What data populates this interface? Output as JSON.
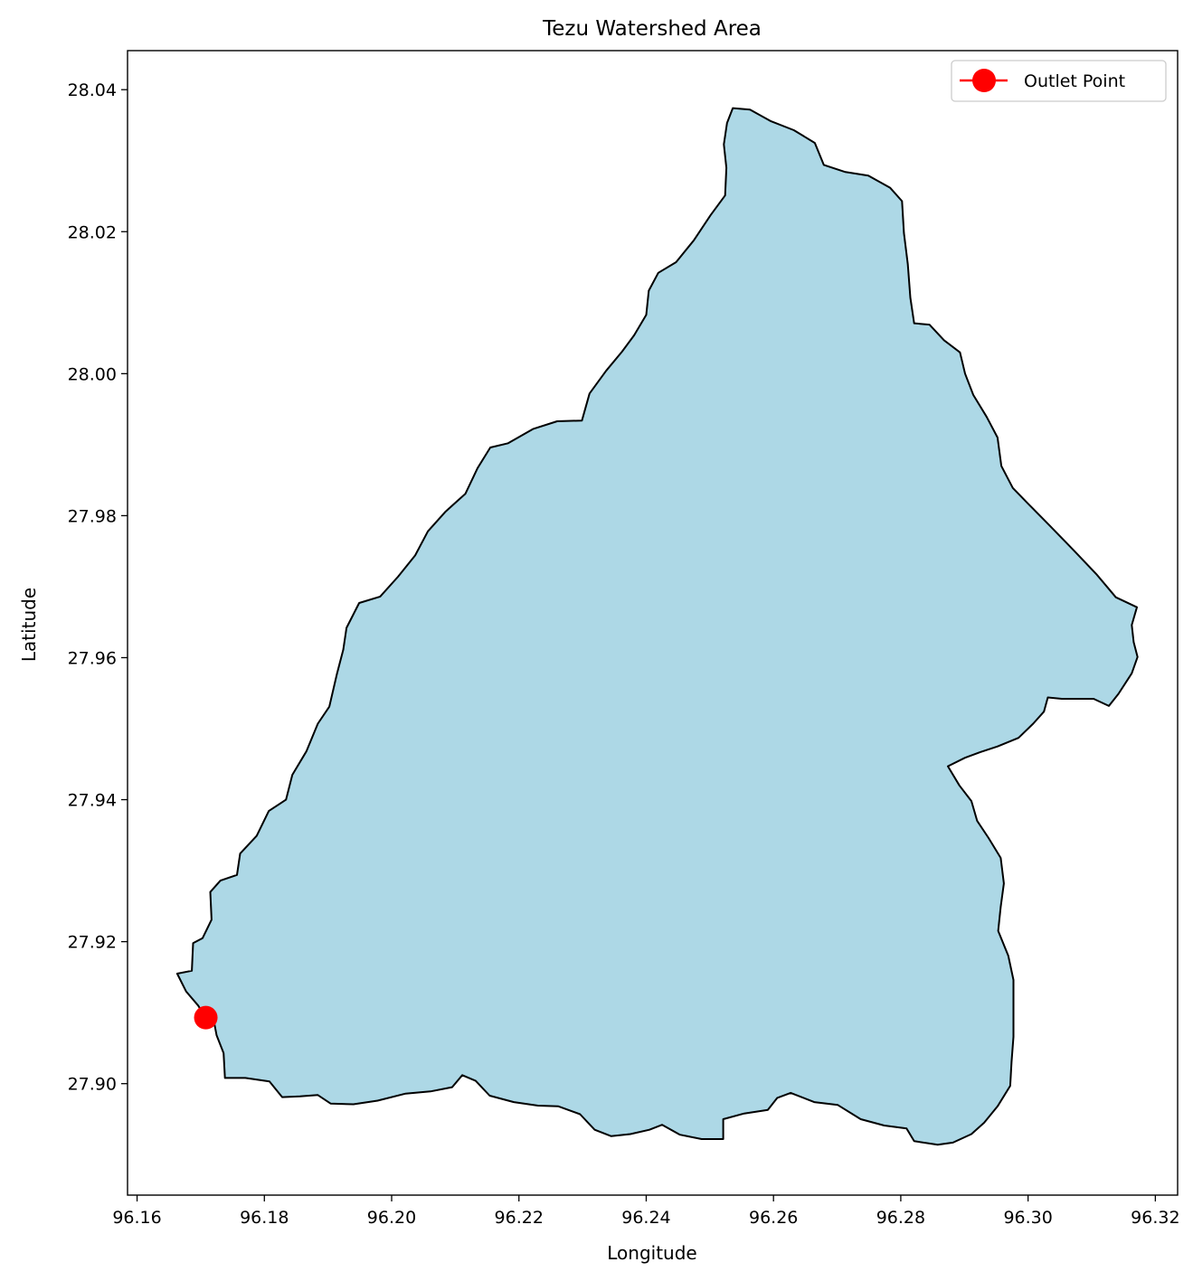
{
  "chart_data": {
    "type": "map",
    "title": "Tezu Watershed Area",
    "xlabel": "Longitude",
    "ylabel": "Latitude",
    "xlim": [
      96.1585,
      96.3235
    ],
    "ylim": [
      27.8843,
      28.0455
    ],
    "xticks": [
      96.16,
      96.18,
      96.2,
      96.22,
      96.24,
      96.26,
      96.28,
      96.3,
      96.32
    ],
    "xtick_labels": [
      "96.16",
      "96.18",
      "96.20",
      "96.22",
      "96.24",
      "96.26",
      "96.28",
      "96.30",
      "96.32"
    ],
    "yticks": [
      27.9,
      27.92,
      27.94,
      27.96,
      27.98,
      28.0,
      28.02,
      28.04
    ],
    "ytick_labels": [
      "27.90",
      "27.92",
      "27.94",
      "27.96",
      "27.98",
      "28.00",
      "28.02",
      "28.04"
    ],
    "grid": false,
    "legend": {
      "position": "top-right",
      "entries": [
        "Outlet Point"
      ]
    },
    "watershed": {
      "fill_color": "#add8e6",
      "edge_color": "#000000",
      "boundary": [
        [
          96.2536,
          28.0374
        ],
        [
          96.2563,
          28.0372
        ],
        [
          96.2595,
          28.0356
        ],
        [
          96.2632,
          28.0343
        ],
        [
          96.2665,
          28.0325
        ],
        [
          96.2679,
          28.0294
        ],
        [
          96.2713,
          28.0284
        ],
        [
          96.2749,
          28.0279
        ],
        [
          96.2783,
          28.0262
        ],
        [
          96.2802,
          28.0243
        ],
        [
          96.2805,
          28.0198
        ],
        [
          96.2811,
          28.0154
        ],
        [
          96.2815,
          28.0107
        ],
        [
          96.2821,
          28.0071
        ],
        [
          96.2845,
          28.0069
        ],
        [
          96.2868,
          28.0047
        ],
        [
          96.2893,
          28.003
        ],
        [
          96.2901,
          28.0
        ],
        [
          96.2914,
          27.997
        ],
        [
          96.2935,
          27.9939
        ],
        [
          96.2952,
          27.991
        ],
        [
          96.2958,
          27.987
        ],
        [
          96.2976,
          27.9839
        ],
        [
          96.3001,
          27.9816
        ],
        [
          96.3034,
          27.9786
        ],
        [
          96.3072,
          27.9751
        ],
        [
          96.3108,
          27.9717
        ],
        [
          96.3138,
          27.9685
        ],
        [
          96.3171,
          27.9671
        ],
        [
          96.3163,
          27.9646
        ],
        [
          96.3166,
          27.9622
        ],
        [
          96.3172,
          27.9601
        ],
        [
          96.3163,
          27.9578
        ],
        [
          96.3142,
          27.9549
        ],
        [
          96.3127,
          27.9532
        ],
        [
          96.3103,
          27.9542
        ],
        [
          96.3053,
          27.9542
        ],
        [
          96.3031,
          27.9544
        ],
        [
          96.3025,
          27.9524
        ],
        [
          96.3008,
          27.9507
        ],
        [
          96.2985,
          27.9487
        ],
        [
          96.2952,
          27.9475
        ],
        [
          96.2925,
          27.9467
        ],
        [
          96.2901,
          27.9459
        ],
        [
          96.2874,
          27.9447
        ],
        [
          96.2892,
          27.942
        ],
        [
          96.2911,
          27.9398
        ],
        [
          96.292,
          27.937
        ],
        [
          96.2938,
          27.9346
        ],
        [
          96.2957,
          27.9318
        ],
        [
          96.2962,
          27.9282
        ],
        [
          96.2957,
          27.9249
        ],
        [
          96.2953,
          27.9215
        ],
        [
          96.2969,
          27.918
        ],
        [
          96.2977,
          27.9146
        ],
        [
          96.2977,
          27.9107
        ],
        [
          96.2977,
          27.9066
        ],
        [
          96.2974,
          27.9031
        ],
        [
          96.2972,
          27.8997
        ],
        [
          96.2952,
          27.8968
        ],
        [
          96.2931,
          27.8945
        ],
        [
          96.2911,
          27.8929
        ],
        [
          96.2882,
          27.8917
        ],
        [
          96.2858,
          27.8914
        ],
        [
          96.2821,
          27.8919
        ],
        [
          96.2809,
          27.8937
        ],
        [
          96.2774,
          27.8941
        ],
        [
          96.2737,
          27.895
        ],
        [
          96.2701,
          27.897
        ],
        [
          96.2664,
          27.8974
        ],
        [
          96.2627,
          27.8987
        ],
        [
          96.2606,
          27.898
        ],
        [
          96.2591,
          27.8963
        ],
        [
          96.2554,
          27.8958
        ],
        [
          96.2521,
          27.895
        ],
        [
          96.2521,
          27.8922
        ],
        [
          96.2487,
          27.8922
        ],
        [
          96.2453,
          27.8928
        ],
        [
          96.2425,
          27.8942
        ],
        [
          96.2405,
          27.8935
        ],
        [
          96.2375,
          27.8929
        ],
        [
          96.2345,
          27.8926
        ],
        [
          96.2319,
          27.8935
        ],
        [
          96.2296,
          27.8957
        ],
        [
          96.2262,
          27.8968
        ],
        [
          96.223,
          27.8969
        ],
        [
          96.2192,
          27.8974
        ],
        [
          96.2154,
          27.8983
        ],
        [
          96.2132,
          27.9004
        ],
        [
          96.2111,
          27.9012
        ],
        [
          96.2095,
          27.8995
        ],
        [
          96.2061,
          27.8989
        ],
        [
          96.2022,
          27.8986
        ],
        [
          96.1978,
          27.8976
        ],
        [
          96.194,
          27.8971
        ],
        [
          96.1904,
          27.8972
        ],
        [
          96.1884,
          27.8984
        ],
        [
          96.1856,
          27.8982
        ],
        [
          96.1828,
          27.8981
        ],
        [
          96.1808,
          27.9003
        ],
        [
          96.177,
          27.9008
        ],
        [
          96.1738,
          27.9008
        ],
        [
          96.1736,
          27.9043
        ],
        [
          96.1725,
          27.9068
        ],
        [
          96.172,
          27.9091
        ],
        [
          96.1708,
          27.9093
        ],
        [
          96.1696,
          27.911
        ],
        [
          96.1677,
          27.913
        ],
        [
          96.1663,
          27.9155
        ],
        [
          96.1686,
          27.9159
        ],
        [
          96.1688,
          27.9198
        ],
        [
          96.1703,
          27.9205
        ],
        [
          96.1717,
          27.9231
        ],
        [
          96.1715,
          27.927
        ],
        [
          96.1731,
          27.9286
        ],
        [
          96.1757,
          27.9294
        ],
        [
          96.1762,
          27.9324
        ],
        [
          96.1788,
          27.9349
        ],
        [
          96.1807,
          27.9384
        ],
        [
          96.1834,
          27.94
        ],
        [
          96.1844,
          27.9435
        ],
        [
          96.1866,
          27.9468
        ],
        [
          96.1884,
          27.9507
        ],
        [
          96.1902,
          27.9531
        ],
        [
          96.1914,
          27.9577
        ],
        [
          96.1924,
          27.9611
        ],
        [
          96.1929,
          27.9642
        ],
        [
          96.1949,
          27.9677
        ],
        [
          96.1982,
          27.9686
        ],
        [
          96.201,
          27.9714
        ],
        [
          96.2037,
          27.9744
        ],
        [
          96.2057,
          27.9778
        ],
        [
          96.2085,
          27.9806
        ],
        [
          96.2116,
          27.9831
        ],
        [
          96.2135,
          27.9867
        ],
        [
          96.2155,
          27.9896
        ],
        [
          96.2183,
          27.9902
        ],
        [
          96.2222,
          27.9922
        ],
        [
          96.226,
          27.9933
        ],
        [
          96.2299,
          27.9934
        ],
        [
          96.2311,
          27.9972
        ],
        [
          96.2337,
          28.0004
        ],
        [
          96.2362,
          28.0031
        ],
        [
          96.2381,
          28.0054
        ],
        [
          96.24,
          28.0083
        ],
        [
          96.2404,
          28.0117
        ],
        [
          96.2419,
          28.0142
        ],
        [
          96.2447,
          28.0157
        ],
        [
          96.2475,
          28.0188
        ],
        [
          96.2501,
          28.0223
        ],
        [
          96.2524,
          28.0251
        ],
        [
          96.2526,
          28.029
        ],
        [
          96.2522,
          28.0323
        ],
        [
          96.2527,
          28.0353
        ],
        [
          96.2536,
          28.0374
        ]
      ]
    },
    "outlet_point": {
      "label": "Outlet Point",
      "color": "#ff0000",
      "lon": 96.1708,
      "lat": 27.9093
    }
  }
}
